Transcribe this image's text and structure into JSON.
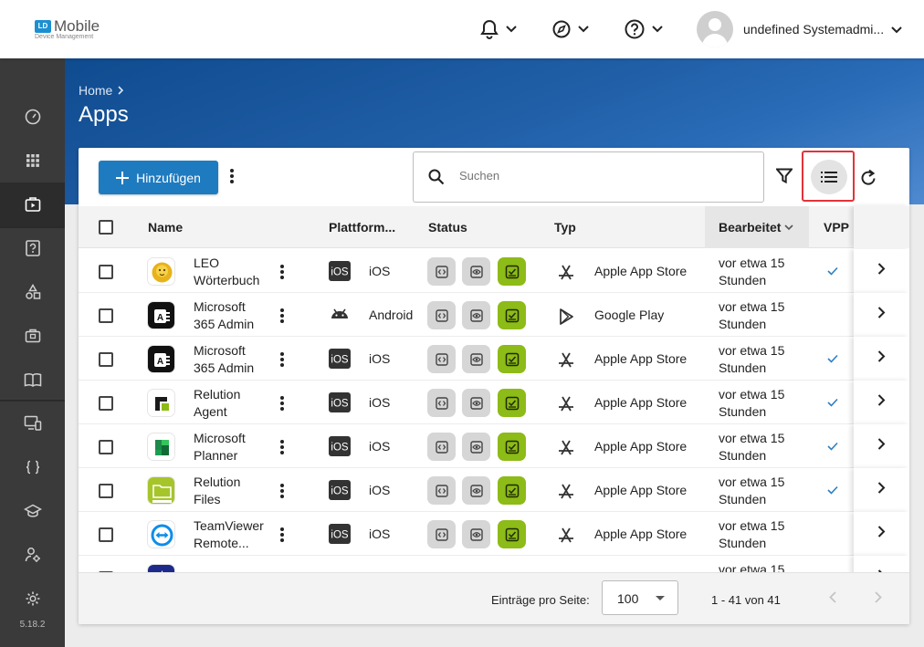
{
  "header": {
    "logo_badge": "LD",
    "logo_title": "Mobile",
    "logo_subtitle": "Device Management",
    "user_name": "undefined Systemadmi..."
  },
  "sidebar": {
    "version": "5.18.2",
    "items": [
      "dashboard-icon",
      "apps-grid-icon",
      "app-store-icon",
      "help-icon",
      "shapes-icon",
      "briefcase-icon",
      "book-icon",
      "monitor-icon",
      "code-icon",
      "school-icon",
      "users-icon",
      "settings-icon"
    ]
  },
  "page": {
    "breadcrumb_home": "Home",
    "title": "Apps"
  },
  "toolbar": {
    "add_label": "Hinzufügen",
    "search_placeholder": "Suchen"
  },
  "table": {
    "columns": {
      "name": "Name",
      "platform": "Plattform...",
      "status": "Status",
      "type": "Typ",
      "edited": "Bearbeitet",
      "vpp": "VPP"
    },
    "rows": [
      {
        "name": "LEO Wörterbuch",
        "icon": "leo-icon",
        "platform_badge": "iOS",
        "platform": "iOS",
        "type": "Apple App Store",
        "edited": "vor etwa 15 Stunden",
        "vpp": true
      },
      {
        "name": "Microsoft 365 Admin",
        "icon": "ms365-admin-icon",
        "platform_badge": "",
        "platform": "Android",
        "type": "Google Play",
        "edited": "vor etwa 15 Stunden",
        "vpp": false
      },
      {
        "name": "Microsoft 365 Admin",
        "icon": "ms365-admin-icon",
        "platform_badge": "iOS",
        "platform": "iOS",
        "type": "Apple App Store",
        "edited": "vor etwa 15 Stunden",
        "vpp": true
      },
      {
        "name": "Relution Agent",
        "icon": "relution-agent-icon",
        "platform_badge": "iOS",
        "platform": "iOS",
        "type": "Apple App Store",
        "edited": "vor etwa 15 Stunden",
        "vpp": true
      },
      {
        "name": "Microsoft Planner",
        "icon": "planner-icon",
        "platform_badge": "iOS",
        "platform": "iOS",
        "type": "Apple App Store",
        "edited": "vor etwa 15 Stunden",
        "vpp": true
      },
      {
        "name": "Relution Files",
        "icon": "relution-files-icon",
        "platform_badge": "iOS",
        "platform": "iOS",
        "type": "Apple App Store",
        "edited": "vor etwa 15 Stunden",
        "vpp": true
      },
      {
        "name": "TeamViewer Remote...",
        "icon": "teamviewer-icon",
        "platform_badge": "iOS",
        "platform": "iOS",
        "type": "Apple App Store",
        "edited": "vor etwa 15 Stunden",
        "vpp": false
      },
      {
        "name": "",
        "icon": "partial-app-icon",
        "platform_badge": "",
        "platform": "",
        "type": "",
        "edited": "vor etwa 15",
        "vpp": false
      }
    ]
  },
  "pagination": {
    "per_page_label": "Einträge pro Seite:",
    "per_page_value": "100",
    "range": "1 - 41 von 41"
  },
  "colors": {
    "accent": "#1f7bc0",
    "status_green": "#8dbb17",
    "highlight_frame": "#e0333a",
    "sidebar": "#3a3a3a"
  }
}
